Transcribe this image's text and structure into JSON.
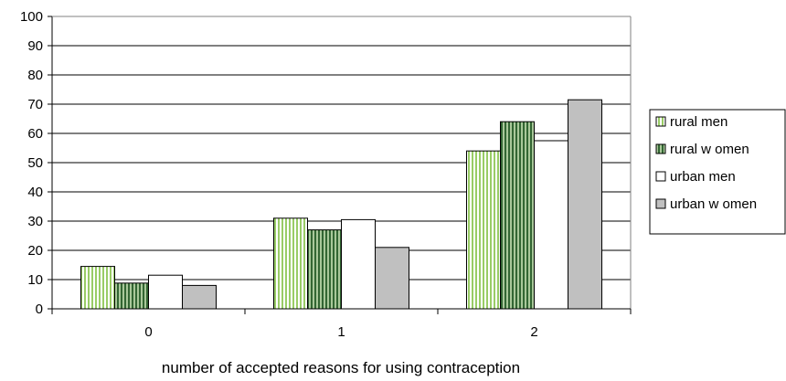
{
  "chart_data": {
    "type": "bar",
    "title": "",
    "xlabel": "number of accepted reasons for using contraception",
    "ylabel": "",
    "categories": [
      "0",
      "1",
      "2"
    ],
    "ylim": [
      0,
      100
    ],
    "yticks": [
      0,
      10,
      20,
      30,
      40,
      50,
      60,
      70,
      80,
      90,
      100
    ],
    "grid": true,
    "legend_position": "right",
    "series": [
      {
        "name": "rural men",
        "values": [
          14.5,
          31,
          54
        ],
        "fill": "#ffffff",
        "pattern": "vertical-lines",
        "pattern_color": "#99cc66"
      },
      {
        "name": "rural w omen",
        "values": [
          8.8,
          27,
          64
        ],
        "fill": "#99bb88",
        "pattern": "vertical-lines",
        "pattern_color": "#336633"
      },
      {
        "name": "urban men",
        "values": [
          11.5,
          30.5,
          57.5
        ],
        "fill": "#ffffff",
        "pattern": "none",
        "pattern_color": ""
      },
      {
        "name": "urban w omen",
        "values": [
          8,
          21,
          71.5
        ],
        "fill": "#c0c0c0",
        "pattern": "none",
        "pattern_color": ""
      }
    ]
  }
}
